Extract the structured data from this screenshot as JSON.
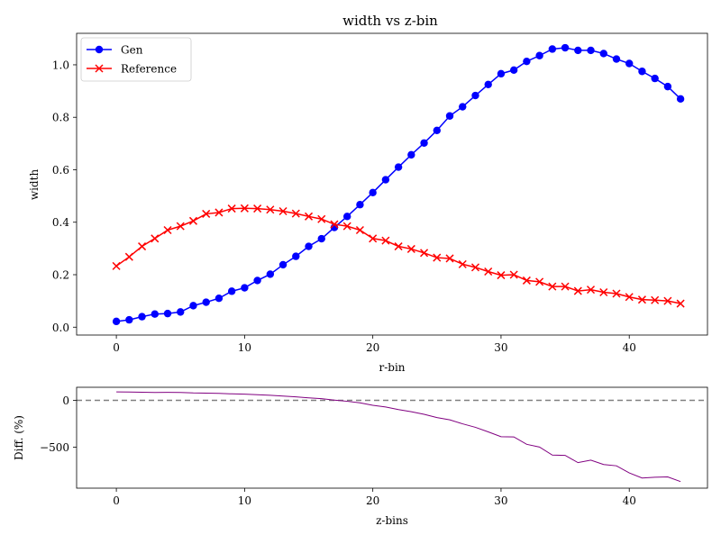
{
  "chart_data": [
    {
      "type": "line",
      "title": "width vs z-bin",
      "xlabel": "r-bin",
      "ylabel": "width",
      "xlim": [
        -3.1,
        46.1
      ],
      "ylim": [
        -0.03,
        1.12
      ],
      "xticks": [
        0,
        10,
        20,
        30,
        40
      ],
      "yticks": [
        0.0,
        0.2,
        0.4,
        0.6,
        0.8,
        1.0
      ],
      "ytick_labels": [
        "0.0",
        "0.2",
        "0.4",
        "0.6",
        "0.8",
        "1.0"
      ],
      "legend_position": "top-left",
      "grid": false,
      "x": [
        0,
        1,
        2,
        3,
        4,
        5,
        6,
        7,
        8,
        9,
        10,
        11,
        12,
        13,
        14,
        15,
        16,
        17,
        18,
        19,
        20,
        21,
        22,
        23,
        24,
        25,
        26,
        27,
        28,
        29,
        30,
        31,
        32,
        33,
        34,
        35,
        36,
        37,
        38,
        39,
        40,
        41,
        42,
        43,
        44
      ],
      "series": [
        {
          "name": "Gen",
          "color": "#0000ff",
          "marker": "circle",
          "values": [
            0.022,
            0.028,
            0.04,
            0.05,
            0.052,
            0.058,
            0.082,
            0.095,
            0.11,
            0.137,
            0.15,
            0.178,
            0.202,
            0.238,
            0.27,
            0.308,
            0.337,
            0.38,
            0.422,
            0.467,
            0.513,
            0.562,
            0.61,
            0.657,
            0.702,
            0.75,
            0.805,
            0.84,
            0.883,
            0.925,
            0.966,
            0.98,
            1.013,
            1.035,
            1.06,
            1.065,
            1.055,
            1.055,
            1.043,
            1.022,
            1.005,
            0.975,
            0.948,
            0.917,
            0.87
          ]
        },
        {
          "name": "Reference",
          "color": "#ff0000",
          "marker": "x",
          "values": [
            0.233,
            0.268,
            0.308,
            0.338,
            0.37,
            0.385,
            0.405,
            0.432,
            0.437,
            0.452,
            0.453,
            0.452,
            0.448,
            0.442,
            0.433,
            0.422,
            0.412,
            0.392,
            0.385,
            0.37,
            0.338,
            0.33,
            0.308,
            0.298,
            0.283,
            0.265,
            0.262,
            0.24,
            0.228,
            0.212,
            0.198,
            0.2,
            0.178,
            0.173,
            0.155,
            0.155,
            0.138,
            0.143,
            0.133,
            0.128,
            0.115,
            0.105,
            0.103,
            0.1,
            0.09
          ]
        }
      ]
    },
    {
      "type": "line",
      "title": "",
      "xlabel": "z-bins",
      "ylabel": "Diff. (%)",
      "xlim": [
        -3.1,
        46.1
      ],
      "ylim": [
        -937,
        140
      ],
      "xticks": [
        0,
        10,
        20,
        30,
        40
      ],
      "yticks": [
        0,
        -500
      ],
      "ytick_labels": [
        "0",
        "−500"
      ],
      "grid": false,
      "reference_line": {
        "y": 0,
        "color": "#808080",
        "style": "dashed"
      },
      "x": [
        0,
        1,
        2,
        3,
        4,
        5,
        6,
        7,
        8,
        9,
        10,
        11,
        12,
        13,
        14,
        15,
        16,
        17,
        18,
        19,
        20,
        21,
        22,
        23,
        24,
        25,
        26,
        27,
        28,
        29,
        30,
        31,
        32,
        33,
        34,
        35,
        36,
        37,
        38,
        39,
        40,
        41,
        42,
        43,
        44
      ],
      "series": [
        {
          "color": "#800080",
          "values": [
            90.6,
            89.6,
            87.0,
            85.2,
            85.9,
            84.9,
            79.8,
            78.0,
            74.8,
            69.7,
            66.9,
            60.6,
            54.9,
            46.2,
            37.6,
            27.0,
            18.2,
            3.1,
            -9.6,
            -26.2,
            -51.8,
            -70.3,
            -98.1,
            -120.5,
            -148.1,
            -183.0,
            -207.3,
            -250.0,
            -287.3,
            -336.3,
            -387.9,
            -390.0,
            -469.1,
            -498.3,
            -583.9,
            -587.1,
            -664.5,
            -637.8,
            -684.2,
            -698.4,
            -773.9,
            -828.6,
            -820.4,
            -817.0,
            -866.7
          ]
        }
      ]
    }
  ]
}
